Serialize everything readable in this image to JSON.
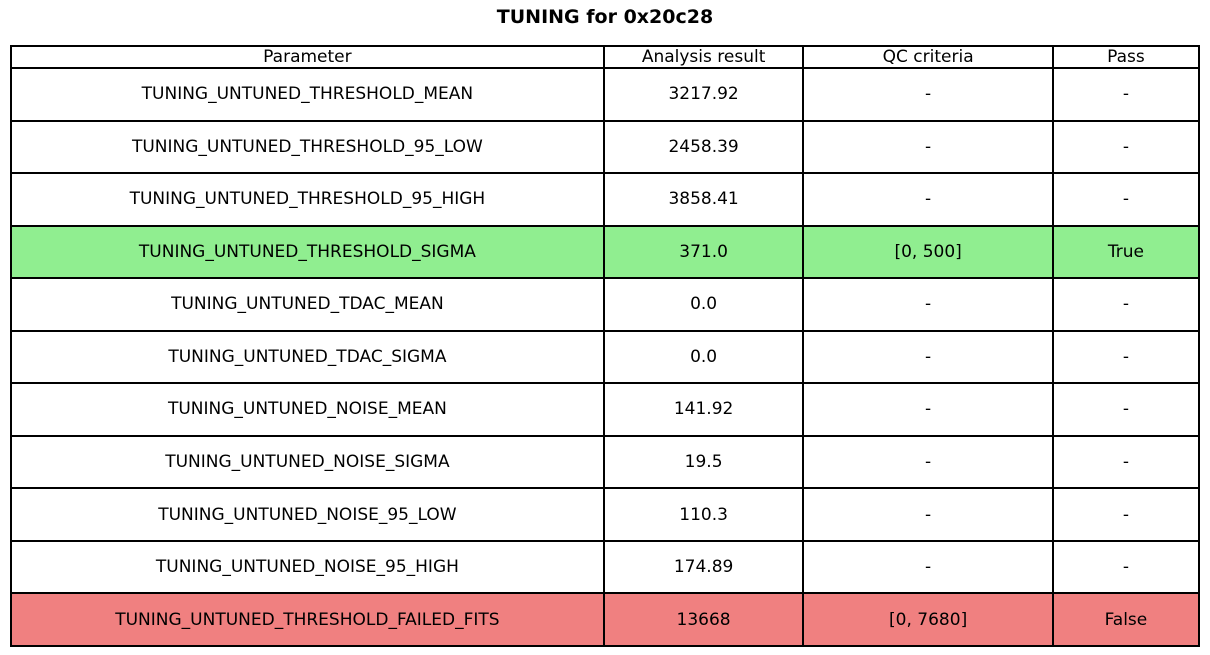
{
  "title": "TUNING for 0x20c28",
  "colors": {
    "pass_row": "#90ee90",
    "fail_row": "#f08080",
    "plain_row": "#ffffff",
    "border": "#000000",
    "background": "#ffffff"
  },
  "chart_data": {
    "type": "table",
    "title": "TUNING for 0x20c28",
    "headers": [
      "Parameter",
      "Analysis result",
      "QC criteria",
      "Pass"
    ],
    "rows": [
      {
        "parameter": "TUNING_UNTUNED_THRESHOLD_MEAN",
        "result": "3217.92",
        "qc": "-",
        "pass": "-",
        "status": "plain"
      },
      {
        "parameter": "TUNING_UNTUNED_THRESHOLD_95_LOW",
        "result": "2458.39",
        "qc": "-",
        "pass": "-",
        "status": "plain"
      },
      {
        "parameter": "TUNING_UNTUNED_THRESHOLD_95_HIGH",
        "result": "3858.41",
        "qc": "-",
        "pass": "-",
        "status": "plain"
      },
      {
        "parameter": "TUNING_UNTUNED_THRESHOLD_SIGMA",
        "result": "371.0",
        "qc": "[0, 500]",
        "pass": "True",
        "status": "pass"
      },
      {
        "parameter": "TUNING_UNTUNED_TDAC_MEAN",
        "result": "0.0",
        "qc": "-",
        "pass": "-",
        "status": "plain"
      },
      {
        "parameter": "TUNING_UNTUNED_TDAC_SIGMA",
        "result": "0.0",
        "qc": "-",
        "pass": "-",
        "status": "plain"
      },
      {
        "parameter": "TUNING_UNTUNED_NOISE_MEAN",
        "result": "141.92",
        "qc": "-",
        "pass": "-",
        "status": "plain"
      },
      {
        "parameter": "TUNING_UNTUNED_NOISE_SIGMA",
        "result": "19.5",
        "qc": "-",
        "pass": "-",
        "status": "plain"
      },
      {
        "parameter": "TUNING_UNTUNED_NOISE_95_LOW",
        "result": "110.3",
        "qc": "-",
        "pass": "-",
        "status": "plain"
      },
      {
        "parameter": "TUNING_UNTUNED_NOISE_95_HIGH",
        "result": "174.89",
        "qc": "-",
        "pass": "-",
        "status": "plain"
      },
      {
        "parameter": "TUNING_UNTUNED_THRESHOLD_FAILED_FITS",
        "result": "13668",
        "qc": "[0, 7680]",
        "pass": "False",
        "status": "fail"
      }
    ]
  }
}
